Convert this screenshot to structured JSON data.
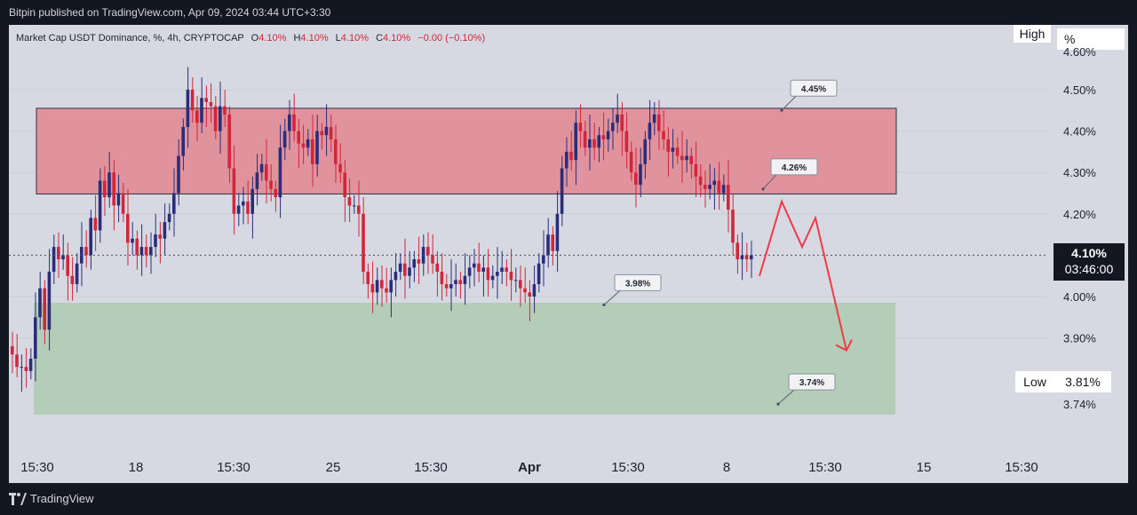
{
  "header": {
    "published_text": "Bitpin published on TradingView.com, Apr 09, 2024 03:44 UTC+3:30"
  },
  "legend": {
    "symbol": "Market Cap USDT Dominance, %, 4h, CRYPTOCAP",
    "o_label": "O",
    "o_val": "4.10%",
    "h_label": "H",
    "h_val": "4.10%",
    "l_label": "L",
    "l_val": "4.10%",
    "c_label": "C",
    "c_val": "4.10%",
    "change": "−0.00 (−0.10%)"
  },
  "price_scale": {
    "high_label": "High",
    "unit_box": "%",
    "low_label": "Low",
    "low_value": "3.81%",
    "current_price": "4.10%",
    "countdown": "03:46:00"
  },
  "footer": {
    "brand": "TradingView"
  },
  "colors": {
    "background": "#131722",
    "chart_bg": "#d6d9e1",
    "bull": "#2a2e7a",
    "bear": "#d3263a",
    "resistance_zone": "#e0939c",
    "support_zone": "#b3cdb8",
    "projection": "#ef3b48"
  },
  "chart_data": {
    "type": "candlestick",
    "title": "",
    "y_ticks": [
      "4.50%",
      "4.40%",
      "4.30%",
      "4.20%",
      "4.00%",
      "3.90%",
      "3.74%"
    ],
    "x_ticks": [
      "15:30",
      "18",
      "15:30",
      "25",
      "15:30",
      "Apr",
      "15:30",
      "8",
      "15:30",
      "15",
      "15:30"
    ],
    "ylim": [
      3.7,
      4.6
    ],
    "current_price": 4.1,
    "zones": [
      {
        "name": "resistance",
        "from": 4.248,
        "to": 4.455
      },
      {
        "name": "support",
        "from": 3.715,
        "to": 3.985
      }
    ],
    "callouts": [
      "4.45%",
      "4.26%",
      "3.98%",
      "3.74%"
    ],
    "callout_values": [
      4.45,
      4.26,
      3.98,
      3.74
    ],
    "projection_path": [
      4.05,
      4.23,
      4.12,
      4.19,
      3.87
    ],
    "closes": [
      3.86,
      3.83,
      3.83,
      3.82,
      3.85,
      3.95,
      4.02,
      3.92,
      4.06,
      4.12,
      4.09,
      4.1,
      4.05,
      4.03,
      4.08,
      4.12,
      4.1,
      4.19,
      4.16,
      4.28,
      4.24,
      4.3,
      4.22,
      4.25,
      4.2,
      4.13,
      4.14,
      4.1,
      4.12,
      4.1,
      4.12,
      4.15,
      4.14,
      4.18,
      4.2,
      4.25,
      4.34,
      4.41,
      4.5,
      4.45,
      4.42,
      4.48,
      4.47,
      4.46,
      4.4,
      4.46,
      4.44,
      4.31,
      4.2,
      4.22,
      4.23,
      4.2,
      4.26,
      4.3,
      4.32,
      4.28,
      4.26,
      4.24,
      4.36,
      4.4,
      4.44,
      4.4,
      4.37,
      4.36,
      4.38,
      4.32,
      4.4,
      4.39,
      4.41,
      4.38,
      4.32,
      4.3,
      4.24,
      4.22,
      4.22,
      4.2,
      4.06,
      4.03,
      4.01,
      4.04,
      4.02,
      4.01,
      4.04,
      4.06,
      4.08,
      4.05,
      4.07,
      4.09,
      4.08,
      4.12,
      4.1,
      4.08,
      4.06,
      4.03,
      4.02,
      4.03,
      4.04,
      4.03,
      4.05,
      4.07,
      4.08,
      4.06,
      4.07,
      4.04,
      4.05,
      4.06,
      4.07,
      4.06,
      4.04,
      4.04,
      4.02,
      4.01,
      4.0,
      4.03,
      4.08,
      4.1,
      4.15,
      4.11,
      4.2,
      4.31,
      4.35,
      4.33,
      4.42,
      4.4,
      4.36,
      4.38,
      4.36,
      4.39,
      4.38,
      4.4,
      4.42,
      4.44,
      4.4,
      4.35,
      4.3,
      4.27,
      4.32,
      4.38,
      4.42,
      4.44,
      4.4,
      4.38,
      4.35,
      4.36,
      4.34,
      4.33,
      4.34,
      4.32,
      4.29,
      4.27,
      4.26,
      4.27,
      4.28,
      4.25,
      4.27,
      4.21,
      4.13,
      4.09,
      4.1,
      4.09,
      4.1
    ]
  }
}
